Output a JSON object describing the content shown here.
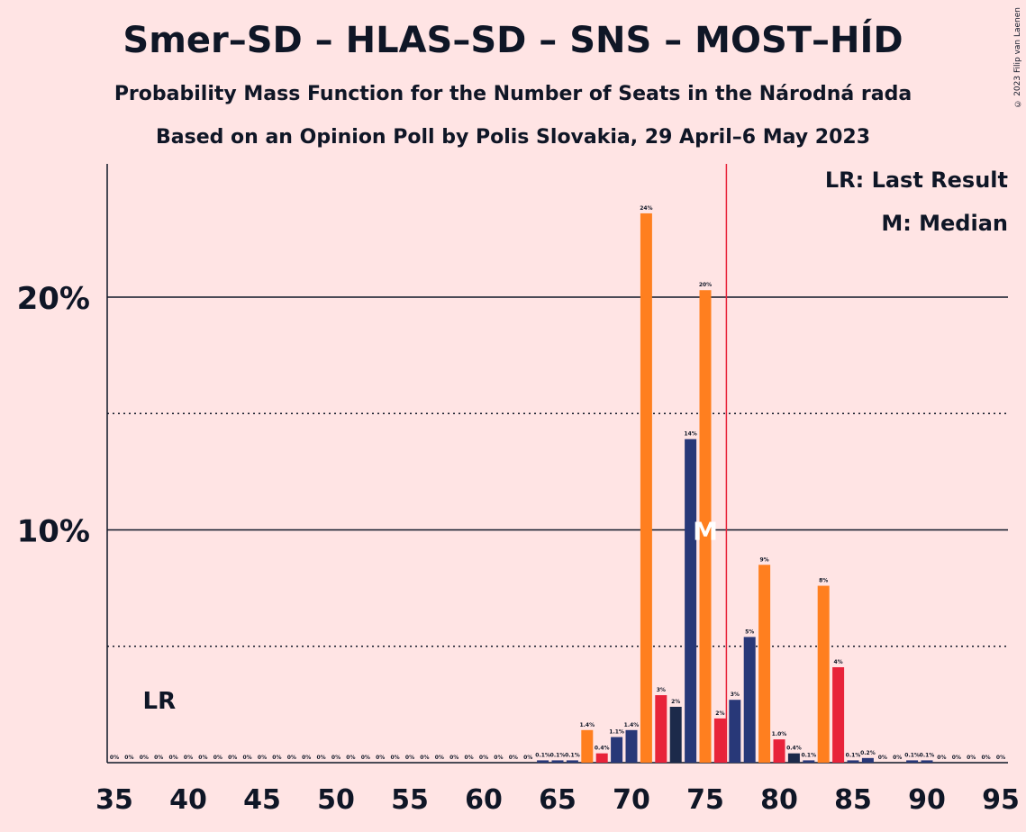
{
  "title": "Smer–SD – HLAS–SD – SNS – MOST–HÍD",
  "subtitle": "Probability Mass Function for the Number of Seats in the Národná rada",
  "subtitle2": "Based on an Opinion Poll by Polis Slovakia, 29 April–6 May 2023",
  "copyright": "© 2023 Filip van Laenen",
  "legend": {
    "last_result": "LR: Last Result",
    "median": "M: Median"
  },
  "colors": {
    "background": "#FFE4E4",
    "orange": "#FF7F1F",
    "navy": "#283878",
    "red": "#E8233A",
    "dark": "#1C2A4A",
    "line": "#E8233A"
  },
  "chart_data": {
    "type": "bar",
    "x": [
      35,
      36,
      37,
      38,
      39,
      40,
      41,
      42,
      43,
      44,
      45,
      46,
      47,
      48,
      49,
      50,
      51,
      52,
      53,
      54,
      55,
      56,
      57,
      58,
      59,
      60,
      61,
      62,
      63,
      64,
      65,
      66,
      67,
      68,
      69,
      70,
      71,
      72,
      73,
      74,
      75,
      76,
      77,
      78,
      79,
      80,
      81,
      82,
      83,
      84,
      85,
      86,
      87,
      88,
      89,
      90,
      91,
      92,
      93,
      94,
      95
    ],
    "values": [
      0,
      0,
      0,
      0,
      0,
      0,
      0,
      0,
      0,
      0,
      0,
      0,
      0,
      0,
      0,
      0,
      0,
      0,
      0,
      0,
      0,
      0,
      0,
      0,
      0,
      0,
      0,
      0,
      0,
      0.1,
      0.1,
      0.1,
      1.4,
      0.4,
      1.1,
      1.4,
      23.6,
      2.9,
      2.4,
      13.9,
      20.3,
      1.9,
      2.7,
      5.4,
      8.5,
      1.0,
      0.4,
      0.1,
      7.6,
      4.1,
      0.1,
      0.2,
      0,
      0,
      0.1,
      0.1,
      0,
      0,
      0,
      0,
      0
    ],
    "labels": [
      "0%",
      "0%",
      "0%",
      "0%",
      "0%",
      "0%",
      "0%",
      "0%",
      "0%",
      "0%",
      "0%",
      "0%",
      "0%",
      "0%",
      "0%",
      "0%",
      "0%",
      "0%",
      "0%",
      "0%",
      "0%",
      "0%",
      "0%",
      "0%",
      "0%",
      "0%",
      "0%",
      "0%",
      "0%",
      "0.1%",
      "0.1%",
      "0.1%",
      "1.4%",
      "0.4%",
      "1.1%",
      "1.4%",
      "24%",
      "3%",
      "2%",
      "14%",
      "20%",
      "2%",
      "3%",
      "5%",
      "9%",
      "1.0%",
      "0.4%",
      "0.1%",
      "8%",
      "4%",
      "0.1%",
      "0.2%",
      "0%",
      "0%",
      "0.1%",
      "0.1%",
      "0%",
      "0%",
      "0%",
      "0%",
      "0%"
    ],
    "colors": [
      "navy",
      "navy",
      "navy",
      "navy",
      "navy",
      "navy",
      "navy",
      "navy",
      "navy",
      "navy",
      "navy",
      "navy",
      "navy",
      "navy",
      "navy",
      "navy",
      "navy",
      "navy",
      "navy",
      "navy",
      "navy",
      "navy",
      "navy",
      "navy",
      "navy",
      "navy",
      "navy",
      "navy",
      "navy",
      "navy",
      "navy",
      "navy",
      "orange",
      "red",
      "navy",
      "navy",
      "orange",
      "red",
      "dark",
      "navy",
      "orange",
      "red",
      "navy",
      "navy",
      "orange",
      "red",
      "dark",
      "navy",
      "orange",
      "red",
      "navy",
      "navy",
      "navy",
      "navy",
      "navy",
      "navy",
      "navy",
      "navy",
      "navy",
      "navy",
      "navy"
    ],
    "xticks": [
      35,
      40,
      45,
      50,
      55,
      60,
      65,
      70,
      75,
      80,
      85,
      90,
      95
    ],
    "xtick_labels": [
      "35",
      "40",
      "45",
      "50",
      "55",
      "60",
      "65",
      "70",
      "75",
      "80",
      "85",
      "90",
      "95"
    ],
    "yticks_major": [
      10,
      20
    ],
    "ytick_labels": [
      "10%",
      "20%"
    ],
    "yticks_minor": [
      5,
      15
    ],
    "xlim": [
      35,
      95
    ],
    "ylim": [
      0,
      25.7
    ],
    "last_result_seat": 37,
    "last_result_label": "LR",
    "median_seat": 75,
    "median_label": "M",
    "majority_seat": 76
  }
}
